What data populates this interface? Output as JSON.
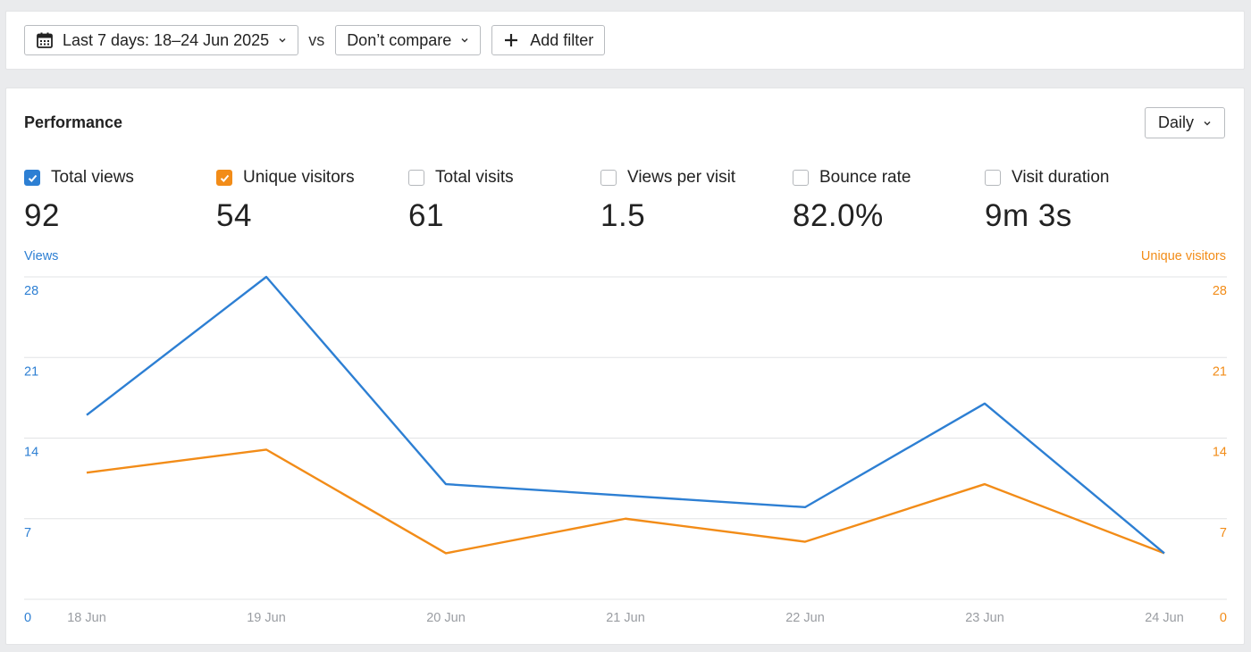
{
  "toolbar": {
    "date_range_label": "Last 7 days: 18–24 Jun 2025",
    "vs_label": "vs",
    "compare_label": "Don’t compare",
    "add_filter_label": "Add filter"
  },
  "panel": {
    "title": "Performance",
    "interval_label": "Daily"
  },
  "metrics": [
    {
      "label": "Total views",
      "value": "92",
      "checked": true,
      "color": "#2d7fd3"
    },
    {
      "label": "Unique visitors",
      "value": "54",
      "checked": true,
      "color": "#f28c18"
    },
    {
      "label": "Total visits",
      "value": "61",
      "checked": false
    },
    {
      "label": "Views per visit",
      "value": "1.5",
      "checked": false
    },
    {
      "label": "Bounce rate",
      "value": "82.0%",
      "checked": false
    },
    {
      "label": "Visit duration",
      "value": "9m 3s",
      "checked": false
    }
  ],
  "chart_data": {
    "type": "line",
    "x": [
      "18 Jun",
      "19 Jun",
      "20 Jun",
      "21 Jun",
      "22 Jun",
      "23 Jun",
      "24 Jun"
    ],
    "series": [
      {
        "name": "Views",
        "axis": "left",
        "color": "#2d7fd3",
        "values": [
          16,
          28,
          10,
          9,
          8,
          17,
          4
        ]
      },
      {
        "name": "Unique visitors",
        "axis": "right",
        "color": "#f28c18",
        "values": [
          11,
          13,
          4,
          7,
          5,
          10,
          4
        ]
      }
    ],
    "ylabel_left": "Views",
    "ylabel_right": "Unique visitors",
    "yticks": [
      "0",
      "7",
      "14",
      "21",
      "28"
    ],
    "ylim": [
      0,
      28
    ],
    "grid": true,
    "legend": "none"
  }
}
